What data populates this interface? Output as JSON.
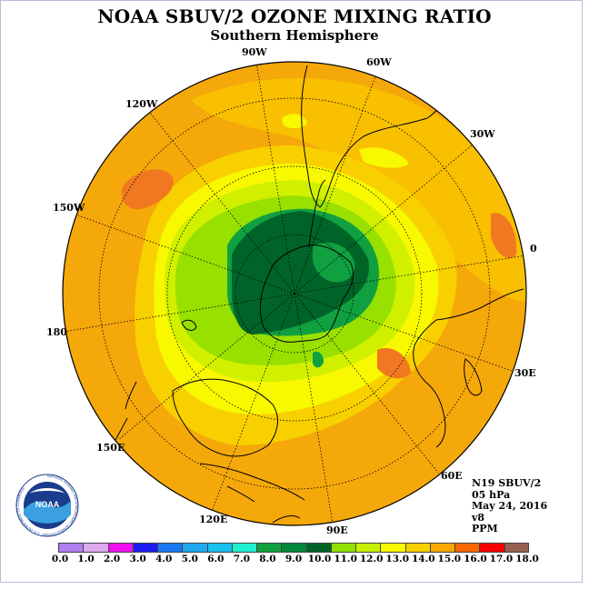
{
  "title": "NOAA SBUV/2 OZONE MIXING RATIO",
  "subtitle": "Southern Hemisphere",
  "longitude_labels": {
    "lon_90w": "90W",
    "lon_60w": "60W",
    "lon_120w": "120W",
    "lon_30w": "30W",
    "lon_150w": "150W",
    "lon_0": "0",
    "lon_180": "180",
    "lon_30e": "30E",
    "lon_150e": "150E",
    "lon_60e": "60E",
    "lon_120e": "120E",
    "lon_90e": "90E"
  },
  "info": {
    "satellite": "N19 SBUV/2",
    "level": "05 hPa",
    "date": "May 24, 2016",
    "version": "v8",
    "units": "PPM"
  },
  "logo": {
    "text": "NOAA",
    "ring_text": "NATIONAL OCEANIC AND ATMOSPHERIC ADMINISTRATION · U.S. DEPARTMENT OF COMMERCE"
  },
  "colorbar": {
    "ticks": [
      "0.0",
      "1.0",
      "2.0",
      "3.0",
      "4.0",
      "5.0",
      "6.0",
      "7.0",
      "8.0",
      "9.0",
      "10.0",
      "11.0",
      "12.0",
      "13.0",
      "14.0",
      "15.0",
      "16.0",
      "17.0",
      "18.0"
    ],
    "colors": [
      "#b07ff0",
      "#dca8f0",
      "#ee10ee",
      "#1c1cf0",
      "#1a78f0",
      "#20a8f0",
      "#18c0f0",
      "#20f0d0",
      "#10a040",
      "#00883a",
      "#006428",
      "#90e000",
      "#c8f000",
      "#f8f800",
      "#f8d000",
      "#f8a800",
      "#f86800",
      "#f80000",
      "#986050"
    ]
  },
  "map_colors": {
    "outer": "#f5a80a",
    "orange_hi": "#f07820",
    "orange_mid": "#f8c000",
    "yellow": "#f8f800",
    "yellow_green": "#d0f000",
    "lime": "#98e000",
    "green": "#10a040",
    "dark_green": "#006428"
  }
}
